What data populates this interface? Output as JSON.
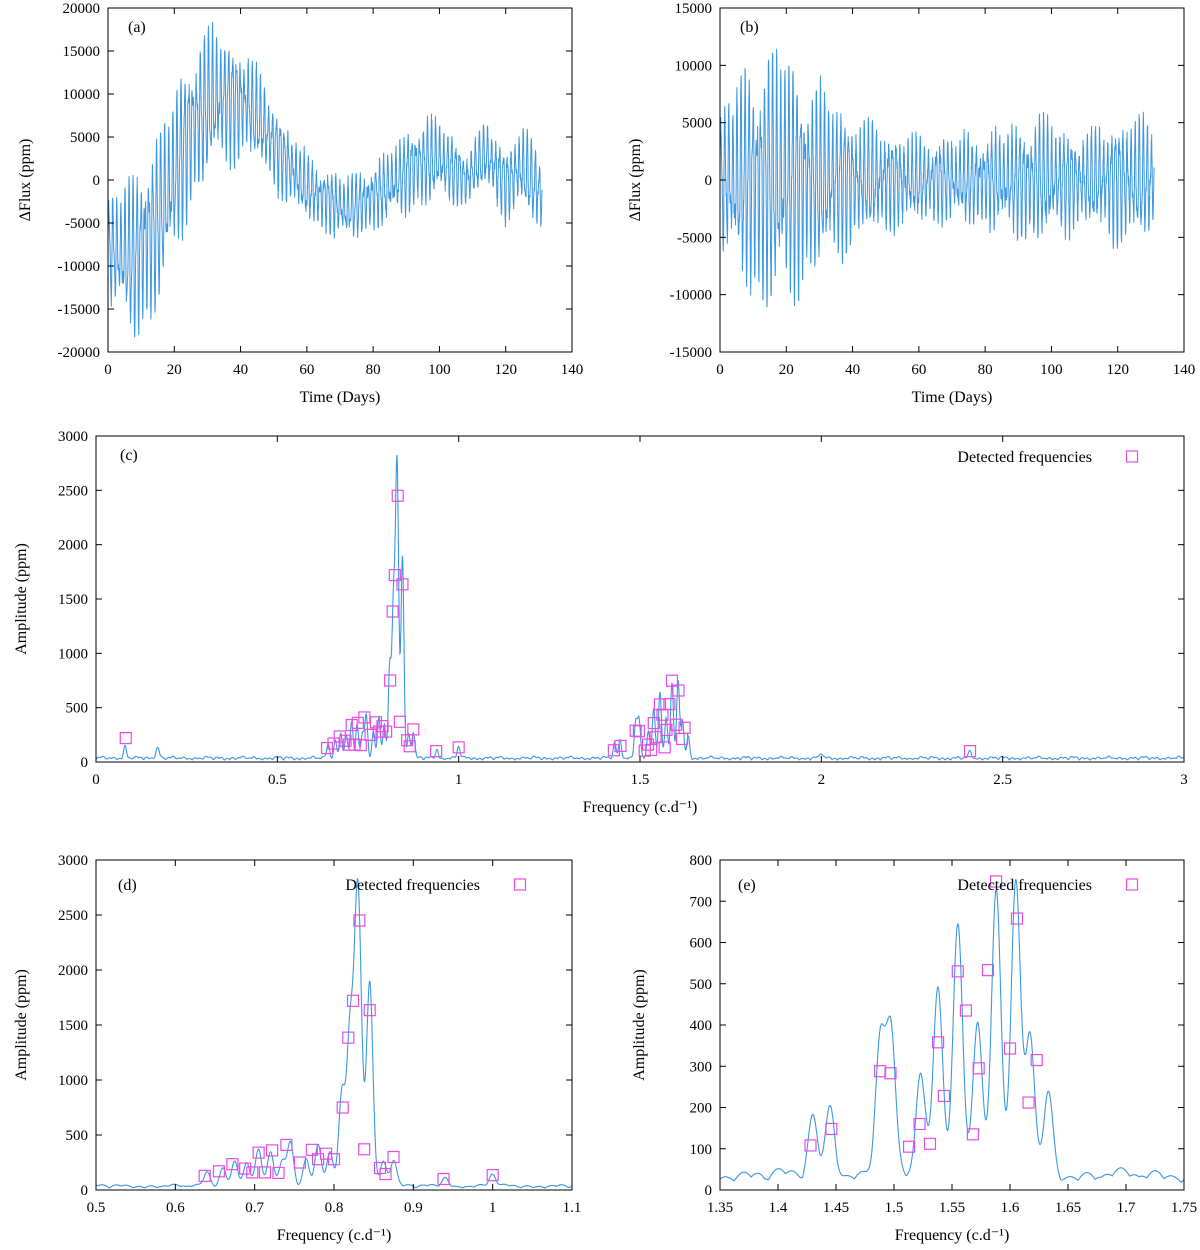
{
  "figure": {
    "legend_label": "Detected frequencies"
  },
  "colors": {
    "trace": "#3d97e0",
    "marker": "#e64ce6",
    "axis": "#000000"
  },
  "chart_data": [
    {
      "id": "a",
      "type": "line",
      "label": "(a)",
      "xlabel": "Time (Days)",
      "ylabel": "ΔFlux (ppm)",
      "xlim": [
        0,
        140
      ],
      "ylim": [
        -20000,
        20000
      ],
      "xticks": [
        0,
        20,
        40,
        60,
        80,
        100,
        120,
        140
      ],
      "yticks": [
        -20000,
        -15000,
        -10000,
        -5000,
        0,
        5000,
        10000,
        15000,
        20000
      ],
      "series": [
        {
          "name": "light curve",
          "kind": "lightcurve",
          "t_end": 131,
          "trend_knots": [
            [
              0,
              -8000
            ],
            [
              8,
              -9000
            ],
            [
              15,
              -5000
            ],
            [
              25,
              6000
            ],
            [
              32,
              9500
            ],
            [
              42,
              9000
            ],
            [
              52,
              3000
            ],
            [
              60,
              -1000
            ],
            [
              72,
              -3500
            ],
            [
              82,
              -1500
            ],
            [
              92,
              1500
            ],
            [
              100,
              2500
            ],
            [
              108,
              0
            ],
            [
              114,
              3000
            ],
            [
              120,
              -500
            ],
            [
              125,
              1500
            ],
            [
              131,
              -2000
            ]
          ],
          "amp_knots": [
            [
              0,
              5000
            ],
            [
              10,
              8500
            ],
            [
              20,
              8000
            ],
            [
              28,
              7500
            ],
            [
              45,
              4500
            ],
            [
              60,
              3000
            ],
            [
              80,
              3000
            ],
            [
              95,
              4200
            ],
            [
              110,
              2500
            ],
            [
              120,
              3500
            ],
            [
              131,
              3800
            ]
          ]
        }
      ]
    },
    {
      "id": "b",
      "type": "line",
      "label": "(b)",
      "xlabel": "Time (Days)",
      "ylabel": "ΔFlux (ppm)",
      "xlim": [
        0,
        140
      ],
      "ylim": [
        -15000,
        15000
      ],
      "xticks": [
        0,
        20,
        40,
        60,
        80,
        100,
        120,
        140
      ],
      "yticks": [
        -15000,
        -10000,
        -5000,
        0,
        5000,
        10000,
        15000
      ],
      "series": [
        {
          "name": "detrended light curve",
          "kind": "lightcurve",
          "t_end": 131,
          "trend_knots": [
            [
              0,
              0
            ],
            [
              131,
              0
            ]
          ],
          "amp_knots": [
            [
              0,
              5000
            ],
            [
              10,
              8500
            ],
            [
              18,
              9500
            ],
            [
              28,
              7000
            ],
            [
              45,
              4000
            ],
            [
              60,
              3000
            ],
            [
              80,
              3200
            ],
            [
              95,
              4500
            ],
            [
              110,
              3200
            ],
            [
              120,
              4500
            ],
            [
              131,
              4200
            ]
          ]
        }
      ]
    },
    {
      "id": "c",
      "type": "line",
      "label": "(c)",
      "xlabel": "Frequency (c.d⁻¹)",
      "ylabel": "Amplitude (ppm)",
      "xlim": [
        0,
        3
      ],
      "ylim": [
        0,
        3000
      ],
      "xticks": [
        0,
        0.5,
        1,
        1.5,
        2,
        2.5,
        3
      ],
      "yticks": [
        0,
        500,
        1000,
        1500,
        2000,
        2500,
        3000
      ],
      "series": [
        {
          "name": "amplitude spectrum",
          "kind": "spectrum"
        },
        {
          "name": "Detected frequencies",
          "kind": "markers"
        }
      ]
    },
    {
      "id": "d",
      "type": "line",
      "label": "(d)",
      "xlabel": "Frequency (c.d⁻¹)",
      "ylabel": "Amplitude (ppm)",
      "xlim": [
        0.5,
        1.1
      ],
      "ylim": [
        0,
        3000
      ],
      "xticks": [
        0.5,
        0.6,
        0.7,
        0.8,
        0.9,
        1,
        1.1
      ],
      "yticks": [
        0,
        500,
        1000,
        1500,
        2000,
        2500,
        3000
      ],
      "series": [
        {
          "name": "amplitude spectrum",
          "kind": "spectrum"
        },
        {
          "name": "Detected frequencies",
          "kind": "markers"
        }
      ]
    },
    {
      "id": "e",
      "type": "line",
      "label": "(e)",
      "xlabel": "Frequency (c.d⁻¹)",
      "ylabel": "Amplitude (ppm)",
      "xlim": [
        1.35,
        1.75
      ],
      "ylim": [
        0,
        800
      ],
      "xticks": [
        1.35,
        1.4,
        1.45,
        1.5,
        1.55,
        1.6,
        1.65,
        1.7,
        1.75
      ],
      "yticks": [
        0,
        100,
        200,
        300,
        400,
        500,
        600,
        700,
        800
      ],
      "series": [
        {
          "name": "amplitude spectrum",
          "kind": "spectrum"
        },
        {
          "name": "Detected frequencies",
          "kind": "markers"
        }
      ]
    }
  ],
  "spectrum_peaks": [
    [
      0.08,
      110,
      0.004
    ],
    [
      0.17,
      100,
      0.005
    ],
    [
      0.64,
      130,
      0.004
    ],
    [
      0.66,
      170,
      0.004
    ],
    [
      0.675,
      230,
      0.004
    ],
    [
      0.69,
      200,
      0.004
    ],
    [
      0.705,
      330,
      0.004
    ],
    [
      0.72,
      300,
      0.004
    ],
    [
      0.735,
      220,
      0.004
    ],
    [
      0.745,
      400,
      0.004
    ],
    [
      0.765,
      250,
      0.004
    ],
    [
      0.78,
      380,
      0.004
    ],
    [
      0.795,
      300,
      0.004
    ],
    [
      0.81,
      850,
      0.004
    ],
    [
      0.82,
      1300,
      0.004
    ],
    [
      0.83,
      2730,
      0.0045
    ],
    [
      0.845,
      1860,
      0.004
    ],
    [
      0.862,
      230,
      0.004
    ],
    [
      0.875,
      240,
      0.004
    ],
    [
      0.94,
      80,
      0.004
    ],
    [
      1.0,
      110,
      0.004
    ],
    [
      1.43,
      140,
      0.004
    ],
    [
      1.445,
      170,
      0.004
    ],
    [
      1.488,
      325,
      0.004
    ],
    [
      1.497,
      350,
      0.004
    ],
    [
      1.523,
      250,
      0.004
    ],
    [
      1.538,
      460,
      0.004
    ],
    [
      1.555,
      625,
      0.004
    ],
    [
      1.572,
      370,
      0.004
    ],
    [
      1.588,
      690,
      0.004
    ],
    [
      1.605,
      700,
      0.004
    ],
    [
      1.617,
      345,
      0.004
    ],
    [
      1.633,
      200,
      0.004
    ],
    [
      2.0,
      50,
      0.004
    ],
    [
      2.41,
      60,
      0.004
    ]
  ],
  "detected_frequencies": [
    [
      0.082,
      220
    ],
    [
      0.637,
      128
    ],
    [
      0.655,
      170
    ],
    [
      0.672,
      235
    ],
    [
      0.688,
      195
    ],
    [
      0.697,
      160
    ],
    [
      0.705,
      340
    ],
    [
      0.713,
      160
    ],
    [
      0.722,
      360
    ],
    [
      0.73,
      155
    ],
    [
      0.74,
      410
    ],
    [
      0.757,
      250
    ],
    [
      0.772,
      365
    ],
    [
      0.78,
      280
    ],
    [
      0.79,
      330
    ],
    [
      0.8,
      280
    ],
    [
      0.811,
      750
    ],
    [
      0.818,
      1385
    ],
    [
      0.824,
      1720
    ],
    [
      0.832,
      2450
    ],
    [
      0.838,
      370
    ],
    [
      0.845,
      1635
    ],
    [
      0.858,
      200
    ],
    [
      0.865,
      145
    ],
    [
      0.875,
      300
    ],
    [
      0.938,
      100
    ],
    [
      1.0,
      135
    ],
    [
      1.428,
      108
    ],
    [
      1.446,
      148
    ],
    [
      1.488,
      288
    ],
    [
      1.497,
      283
    ],
    [
      1.513,
      105
    ],
    [
      1.522,
      160
    ],
    [
      1.531,
      112
    ],
    [
      1.538,
      358
    ],
    [
      1.543,
      228
    ],
    [
      1.555,
      530
    ],
    [
      1.562,
      435
    ],
    [
      1.568,
      135
    ],
    [
      1.573,
      295
    ],
    [
      1.581,
      533
    ],
    [
      1.588,
      748
    ],
    [
      1.6,
      343
    ],
    [
      1.606,
      658
    ],
    [
      1.616,
      212
    ],
    [
      1.623,
      315
    ],
    [
      2.41,
      100
    ]
  ]
}
